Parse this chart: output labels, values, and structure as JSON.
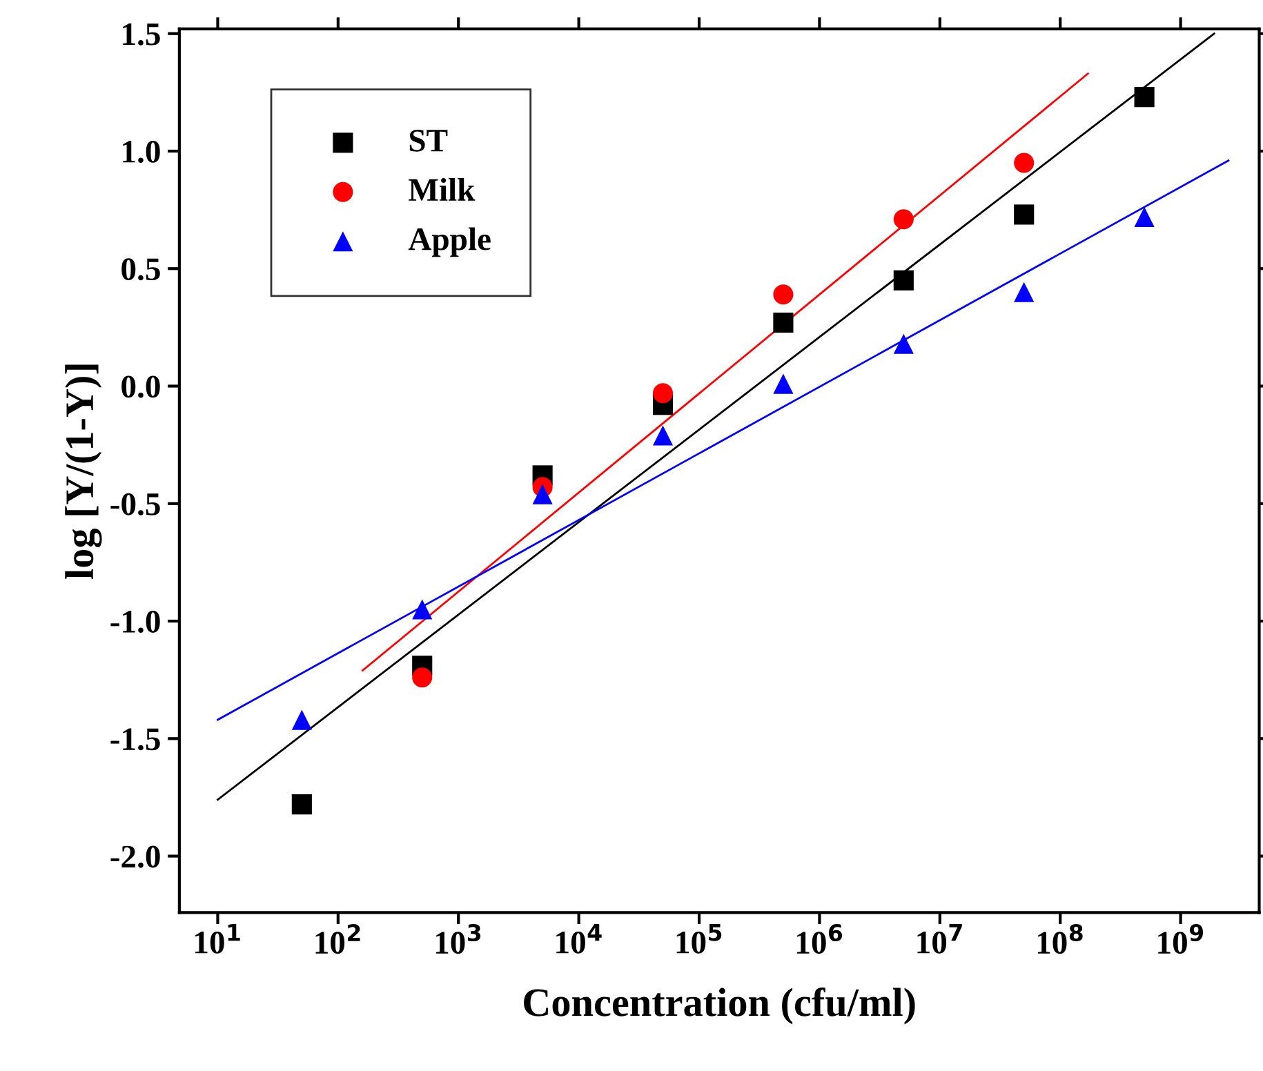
{
  "chart_data": {
    "type": "scatter",
    "xlabel": "Concentration (cfu/ml)",
    "ylabel": "log [Y/(1-Y)]",
    "log": "x",
    "xlim": [
      4.8,
      4500000000.0
    ],
    "ylim": [
      -2.24,
      1.52
    ],
    "xticks": [
      {
        "value": 10,
        "label": "10$^{1}$"
      },
      {
        "value": 100,
        "label": "10$^{2}$"
      },
      {
        "value": 1000,
        "label": "10$^{3}$"
      },
      {
        "value": 10000,
        "label": "10$^{4}$"
      },
      {
        "value": 100000,
        "label": "10$^{5}$"
      },
      {
        "value": 1000000,
        "label": "10$^{6}$"
      },
      {
        "value": 10000000,
        "label": "10$^{7}$"
      },
      {
        "value": 100000000,
        "label": "10$^{8}$"
      },
      {
        "value": 1000000000,
        "label": "10$^{9}$"
      }
    ],
    "yticks": [
      {
        "value": -2.0,
        "label": "-2.0"
      },
      {
        "value": -1.5,
        "label": "-1.5"
      },
      {
        "value": -1.0,
        "label": "-1.0"
      },
      {
        "value": -0.5,
        "label": "-0.5"
      },
      {
        "value": 0.0,
        "label": "0.0"
      },
      {
        "value": 0.5,
        "label": "0.5"
      },
      {
        "value": 1.0,
        "label": "1.0"
      },
      {
        "value": 1.5,
        "label": "1.5"
      }
    ],
    "grid": false,
    "legend": "top left",
    "series": [
      {
        "name": "ST",
        "color": "#000000",
        "marker": "square",
        "x": [
          50,
          500,
          5000,
          50000,
          500000,
          5000000,
          50000000,
          500000000
        ],
        "values": [
          -1.78,
          -1.19,
          -0.38,
          -0.08,
          0.27,
          0.45,
          0.73,
          1.23
        ]
      },
      {
        "name": "Milk",
        "color": "#ff0000",
        "marker": "circle",
        "x": [
          500,
          5000,
          50000,
          500000,
          5000000,
          50000000
        ],
        "values": [
          -1.24,
          -0.43,
          -0.03,
          0.39,
          0.71,
          0.95
        ]
      },
      {
        "name": "Apple",
        "color": "#0000ff",
        "marker": "triangle",
        "x": [
          50,
          500,
          5000,
          50000,
          500000,
          5000000,
          50000000,
          500000000
        ],
        "values": [
          -1.42,
          -0.95,
          -0.46,
          -0.21,
          0.01,
          0.18,
          0.4,
          0.72
        ]
      },
      {
        "type": "line",
        "color": "#000000",
        "x": [
          10,
          1900000000.0
        ],
        "values": [
          -1.76,
          1.5
        ]
      },
      {
        "type": "line",
        "color": "#ff0000",
        "x": [
          160,
          170000000.0
        ],
        "values": [
          -1.21,
          1.33
        ]
      },
      {
        "type": "line",
        "color": "#0000ff",
        "x": [
          10,
          2500000000.0
        ],
        "values": [
          -1.42,
          0.96
        ]
      }
    ]
  }
}
